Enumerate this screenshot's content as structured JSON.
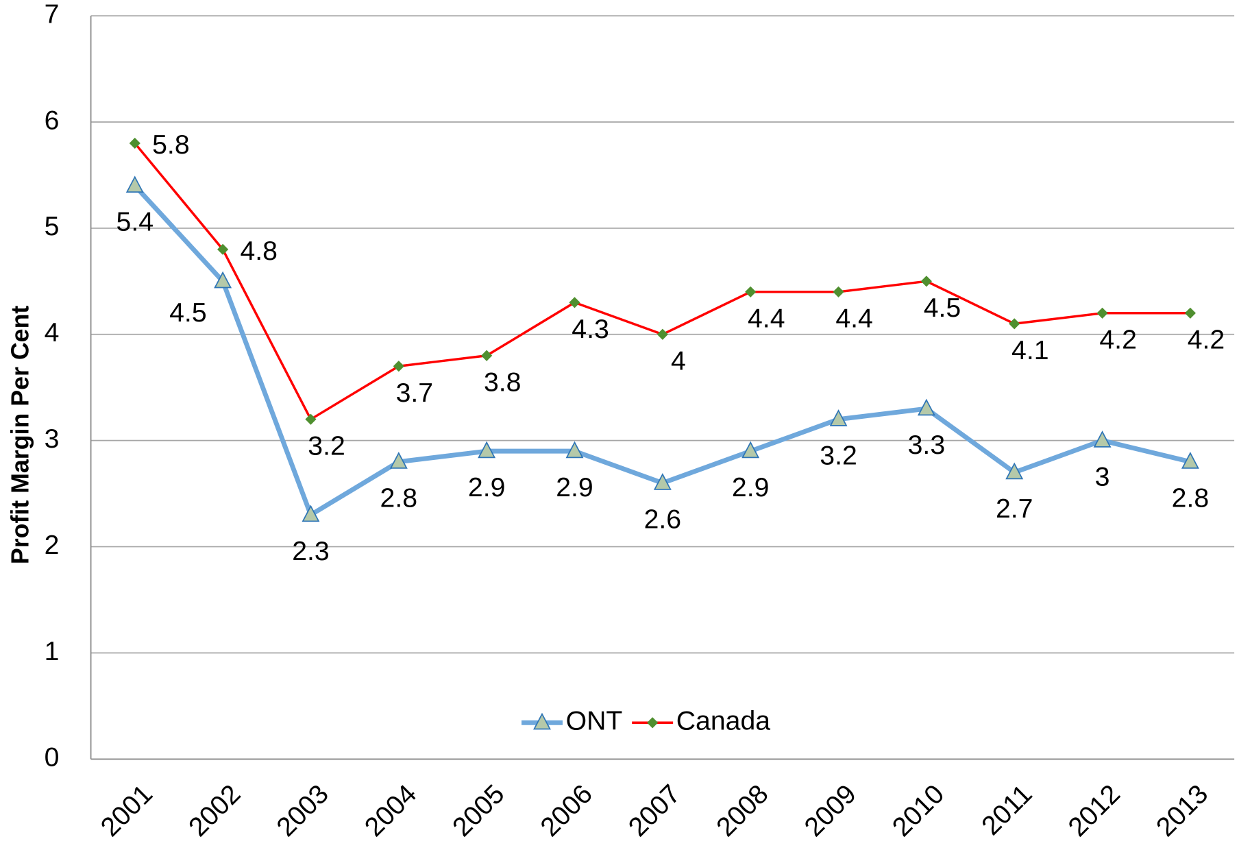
{
  "chart_data": {
    "type": "line",
    "y_label": "Profit Margin Per Cent",
    "categories": [
      "2001",
      "2002",
      "2003",
      "2004",
      "2005",
      "2006",
      "2007",
      "2008",
      "2009",
      "2010",
      "2011",
      "2012",
      "2013"
    ],
    "series": [
      {
        "name": "ONT",
        "color": "#6fa8dc",
        "marker": "triangle",
        "values": [
          5.4,
          4.5,
          2.3,
          2.8,
          2.9,
          2.9,
          2.6,
          2.9,
          3.2,
          3.3,
          2.7,
          3,
          2.8
        ]
      },
      {
        "name": "Canada",
        "color": "#ff0000",
        "marker": "diamond",
        "values": [
          5.8,
          4.8,
          3.2,
          3.7,
          3.8,
          4.3,
          4,
          4.4,
          4.4,
          4.5,
          4.1,
          4.2,
          4.2
        ]
      }
    ],
    "ylim": [
      0,
      7
    ],
    "yticks": [
      0,
      1,
      2,
      3,
      4,
      5,
      6,
      7
    ],
    "grid": true,
    "legend": "bottom"
  }
}
